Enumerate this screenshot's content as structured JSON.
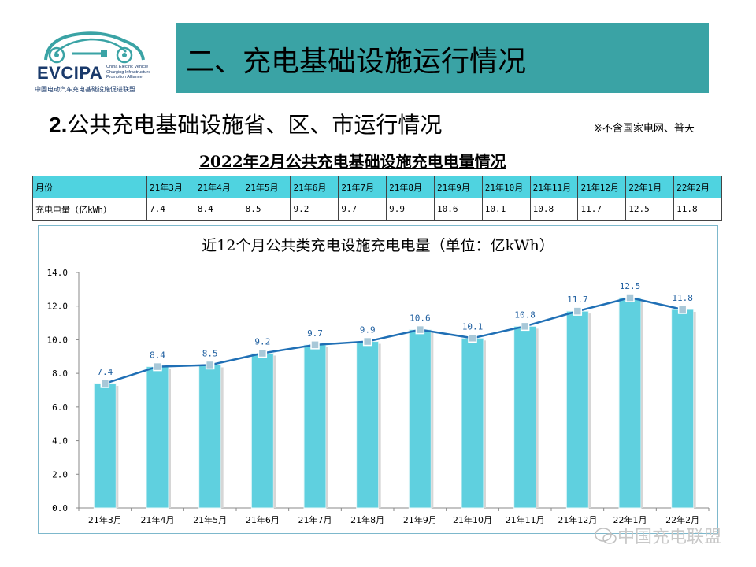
{
  "logo": {
    "brand": "EVCIPA",
    "en_name": "China Electric Vehicle Charging Infrastructure Promotion Alliance",
    "cn_name": "中国电动汽车充电基础设施促进联盟"
  },
  "header": {
    "title": "二、充电基础设施运行情况",
    "subtitle_num": "2.",
    "subtitle": "公共充电基础设施省、区、市运行情况",
    "note": "※不含国家电网、普天"
  },
  "table": {
    "title": "2022年2月公共充电基础设施充电电量情况",
    "row_labels": [
      "月份",
      "充电电量（亿kWh）"
    ],
    "months": [
      "21年3月",
      "21年4月",
      "21年5月",
      "21年6月",
      "21年7月",
      "21年8月",
      "21年9月",
      "21年10月",
      "21年11月",
      "21年12月",
      "22年1月",
      "22年2月"
    ],
    "values": [
      "7.4",
      "8.4",
      "8.5",
      "9.2",
      "9.7",
      "9.9",
      "10.6",
      "10.1",
      "10.8",
      "11.7",
      "12.5",
      "11.8"
    ]
  },
  "chart_data": {
    "type": "bar",
    "title": "近12个月公共类充电设施充电电量（单位：亿kWh）",
    "categories": [
      "21年3月",
      "21年4月",
      "21年5月",
      "21年6月",
      "21年7月",
      "21年8月",
      "21年9月",
      "21年10月",
      "21年11月",
      "21年12月",
      "22年1月",
      "22年2月"
    ],
    "values": [
      7.4,
      8.4,
      8.5,
      9.2,
      9.7,
      9.9,
      10.6,
      10.1,
      10.8,
      11.7,
      12.5,
      11.8
    ],
    "overlay": "line",
    "ylim": [
      0,
      14
    ],
    "yticks": [
      "0.0",
      "2.0",
      "4.0",
      "6.0",
      "8.0",
      "10.0",
      "12.0",
      "14.0"
    ],
    "grid": false,
    "legend": "none",
    "colors": {
      "bar": "#5fd0df",
      "bar_edge": "#e8f8fa",
      "line": "#1f6fb5",
      "marker": "#a8c8d8",
      "label": "#1f5fa0"
    }
  },
  "watermark": "中国充电联盟"
}
